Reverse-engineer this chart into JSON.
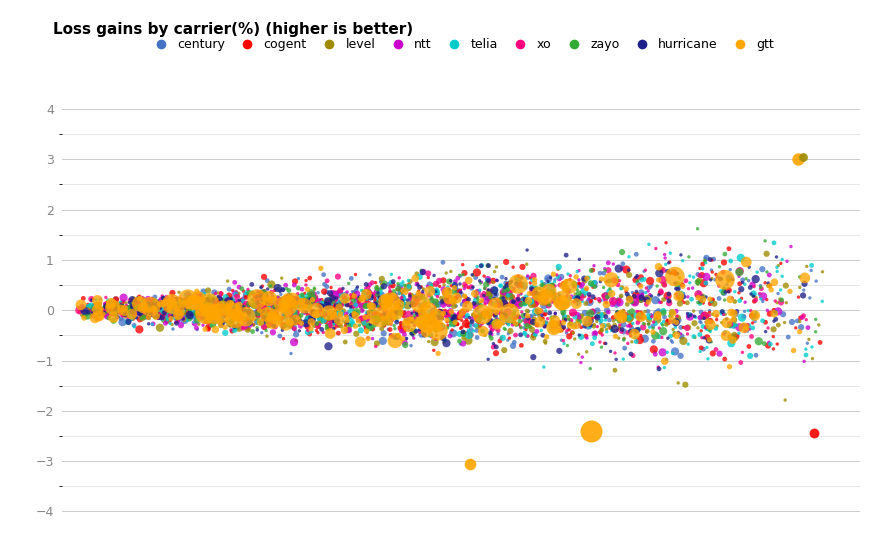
{
  "title": "Loss gains by carrier(%) (higher is better)",
  "carriers": [
    "century",
    "cogent",
    "level",
    "ntt",
    "telia",
    "xo",
    "zayo",
    "hurricane",
    "gtt"
  ],
  "colors": {
    "century": "#4472C4",
    "cogent": "#FF0000",
    "level": "#9E8B00",
    "ntt": "#CC00CC",
    "telia": "#00CCCC",
    "xo": "#FF007F",
    "zayo": "#33AA33",
    "hurricane": "#1F1F8A",
    "gtt": "#FFA500"
  },
  "ylim": [
    -4.2,
    4.2
  ],
  "yticks": [
    -4,
    -3,
    -2,
    -1,
    0,
    1,
    2,
    3,
    4
  ],
  "n_points": {
    "century": 500,
    "cogent": 480,
    "level": 460,
    "ntt": 380,
    "telia": 460,
    "xo": 380,
    "zayo": 320,
    "hurricane": 400,
    "gtt": 300
  },
  "seed": 7
}
